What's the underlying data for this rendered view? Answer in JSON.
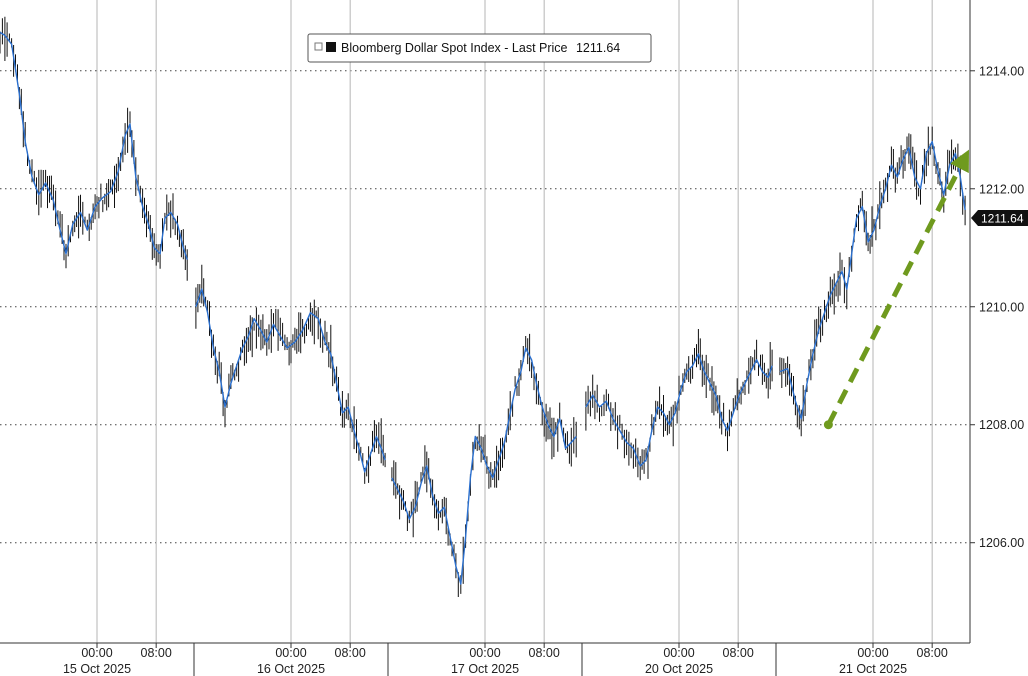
{
  "chart_data": {
    "type": "line",
    "title": "",
    "legend": {
      "label": "Bloomberg Dollar Spot Index - Last Price",
      "value": "1211.64",
      "placement": "top-center"
    },
    "last_price_label": "1211.64",
    "y_axis": {
      "position": "right",
      "ylim": [
        1204.3,
        1215.2
      ],
      "ticks": [
        1206,
        1208,
        1210,
        1212,
        1214
      ],
      "tick_labels": [
        "1206.00",
        "1208.00",
        "1210.00",
        "1212.00",
        "1214.00"
      ]
    },
    "x_axis": {
      "xlim": [
        0,
        100
      ],
      "time_ticks": [
        {
          "label": "00:00",
          "x": 10.0
        },
        {
          "label": "08:00",
          "x": 16.1
        },
        {
          "label": "00:00",
          "x": 30.0
        },
        {
          "label": "08:00",
          "x": 36.1
        },
        {
          "label": "00:00",
          "x": 50.0
        },
        {
          "label": "08:00",
          "x": 56.1
        },
        {
          "label": "00:00",
          "x": 70.0
        },
        {
          "label": "08:00",
          "x": 76.1
        },
        {
          "label": "00:00",
          "x": 90.0
        },
        {
          "label": "08:00",
          "x": 96.1
        }
      ],
      "date_labels": [
        {
          "label": "15 Oct 2025",
          "x": 10.0
        },
        {
          "label": "16 Oct 2025",
          "x": 30.0
        },
        {
          "label": "17 Oct 2025",
          "x": 50.0
        },
        {
          "label": "20 Oct 2025",
          "x": 70.0
        },
        {
          "label": "21 Oct 2025",
          "x": 90.0
        }
      ],
      "day_separators": [
        20,
        40,
        60,
        80
      ]
    },
    "grid": true,
    "series": [
      {
        "name": "Bloomberg Dollar Spot Index",
        "color": "#2a6fce",
        "wick_color": "#111111",
        "segments": [
          [
            [
              0.0,
              1214.65
            ],
            [
              0.5,
              1214.6
            ],
            [
              1.2,
              1214.45
            ],
            [
              2.0,
              1213.6
            ],
            [
              2.6,
              1212.8
            ],
            [
              3.3,
              1212.2
            ],
            [
              4.0,
              1211.9
            ],
            [
              4.7,
              1212.1
            ],
            [
              5.5,
              1211.8
            ],
            [
              6.2,
              1211.3
            ],
            [
              6.8,
              1210.9
            ],
            [
              7.5,
              1211.4
            ],
            [
              8.3,
              1211.6
            ],
            [
              9.0,
              1211.3
            ],
            [
              9.8,
              1211.7
            ],
            [
              10.6,
              1211.85
            ],
            [
              11.4,
              1211.95
            ],
            [
              12.2,
              1212.3
            ],
            [
              12.9,
              1212.9
            ],
            [
              13.4,
              1213.1
            ],
            [
              14.0,
              1212.2
            ],
            [
              14.7,
              1211.7
            ],
            [
              15.3,
              1211.4
            ],
            [
              15.9,
              1211.0
            ],
            [
              16.5,
              1210.9
            ],
            [
              17.0,
              1211.5
            ],
            [
              17.6,
              1211.6
            ],
            [
              18.3,
              1211.4
            ],
            [
              18.9,
              1211.0
            ],
            [
              19.3,
              1210.8
            ]
          ],
          [
            [
              20.2,
              1210.0
            ],
            [
              20.8,
              1210.3
            ],
            [
              21.4,
              1209.9
            ],
            [
              22.0,
              1209.3
            ],
            [
              22.6,
              1208.9
            ],
            [
              23.2,
              1208.3
            ],
            [
              23.8,
              1208.7
            ],
            [
              24.4,
              1209.0
            ],
            [
              25.0,
              1209.3
            ],
            [
              25.6,
              1209.5
            ],
            [
              26.2,
              1209.8
            ],
            [
              26.9,
              1209.6
            ],
            [
              27.5,
              1209.4
            ],
            [
              28.2,
              1209.7
            ],
            [
              28.9,
              1209.5
            ],
            [
              29.6,
              1209.3
            ],
            [
              30.4,
              1209.4
            ],
            [
              31.2,
              1209.6
            ],
            [
              32.0,
              1209.9
            ],
            [
              32.8,
              1209.8
            ],
            [
              33.5,
              1209.4
            ],
            [
              34.1,
              1209.2
            ],
            [
              34.7,
              1208.7
            ],
            [
              35.3,
              1208.2
            ],
            [
              35.9,
              1208.3
            ],
            [
              36.5,
              1207.9
            ],
            [
              37.0,
              1207.6
            ],
            [
              37.6,
              1207.2
            ],
            [
              38.2,
              1207.5
            ],
            [
              38.8,
              1207.8
            ],
            [
              39.3,
              1207.6
            ],
            [
              39.7,
              1207.4
            ]
          ],
          [
            [
              40.4,
              1207.1
            ],
            [
              41.0,
              1206.9
            ],
            [
              41.6,
              1206.7
            ],
            [
              42.2,
              1206.4
            ],
            [
              42.8,
              1206.6
            ],
            [
              43.4,
              1207.0
            ],
            [
              44.0,
              1207.3
            ],
            [
              44.6,
              1206.8
            ],
            [
              45.2,
              1206.5
            ],
            [
              45.8,
              1206.6
            ],
            [
              46.4,
              1206.1
            ],
            [
              47.0,
              1205.6
            ],
            [
              47.5,
              1205.3
            ],
            [
              48.0,
              1206.1
            ],
            [
              48.5,
              1207.1
            ],
            [
              49.0,
              1207.8
            ],
            [
              49.6,
              1207.6
            ],
            [
              50.2,
              1207.3
            ],
            [
              50.8,
              1207.1
            ],
            [
              51.4,
              1207.4
            ],
            [
              52.0,
              1207.7
            ],
            [
              52.6,
              1208.2
            ],
            [
              53.1,
              1208.6
            ],
            [
              53.7,
              1208.9
            ],
            [
              54.2,
              1209.3
            ],
            [
              54.8,
              1209.1
            ],
            [
              55.3,
              1208.7
            ],
            [
              55.9,
              1208.3
            ],
            [
              56.5,
              1208.0
            ],
            [
              57.1,
              1207.8
            ],
            [
              57.7,
              1208.1
            ],
            [
              58.3,
              1207.6
            ],
            [
              58.9,
              1207.7
            ],
            [
              59.4,
              1207.8
            ]
          ],
          [
            [
              60.4,
              1208.3
            ],
            [
              61.1,
              1208.5
            ],
            [
              61.8,
              1208.3
            ],
            [
              62.5,
              1208.4
            ],
            [
              63.2,
              1208.1
            ],
            [
              63.9,
              1207.9
            ],
            [
              64.6,
              1207.7
            ],
            [
              65.3,
              1207.6
            ],
            [
              66.0,
              1207.3
            ],
            [
              66.6,
              1207.4
            ],
            [
              67.2,
              1207.9
            ],
            [
              67.8,
              1208.3
            ],
            [
              68.4,
              1208.2
            ],
            [
              69.0,
              1208.0
            ],
            [
              69.6,
              1208.2
            ],
            [
              70.2,
              1208.6
            ],
            [
              70.8,
              1208.9
            ],
            [
              71.4,
              1209.0
            ],
            [
              72.0,
              1209.2
            ],
            [
              72.6,
              1208.9
            ],
            [
              73.2,
              1208.7
            ],
            [
              73.8,
              1208.5
            ],
            [
              74.4,
              1208.1
            ],
            [
              75.0,
              1207.9
            ],
            [
              75.6,
              1208.2
            ],
            [
              76.2,
              1208.5
            ],
            [
              76.8,
              1208.7
            ],
            [
              77.4,
              1208.9
            ],
            [
              78.0,
              1209.1
            ],
            [
              78.6,
              1208.9
            ],
            [
              79.2,
              1208.8
            ],
            [
              79.6,
              1209.0
            ]
          ],
          [
            [
              80.4,
              1208.9
            ],
            [
              81.2,
              1208.95
            ],
            [
              82.0,
              1208.4
            ],
            [
              82.6,
              1208.1
            ],
            [
              83.2,
              1208.7
            ],
            [
              83.8,
              1209.2
            ],
            [
              84.4,
              1209.6
            ],
            [
              85.0,
              1209.9
            ],
            [
              85.6,
              1210.2
            ],
            [
              86.2,
              1210.4
            ],
            [
              86.8,
              1210.6
            ],
            [
              87.3,
              1210.3
            ],
            [
              87.8,
              1210.9
            ],
            [
              88.3,
              1211.5
            ],
            [
              88.9,
              1211.7
            ],
            [
              89.5,
              1211.1
            ],
            [
              90.1,
              1211.3
            ],
            [
              90.7,
              1211.7
            ],
            [
              91.3,
              1212.0
            ],
            [
              91.9,
              1212.4
            ],
            [
              92.5,
              1212.2
            ],
            [
              93.1,
              1212.5
            ],
            [
              93.7,
              1212.7
            ],
            [
              94.3,
              1212.2
            ],
            [
              94.9,
              1212.0
            ],
            [
              95.5,
              1212.6
            ],
            [
              96.1,
              1212.8
            ],
            [
              96.7,
              1212.3
            ],
            [
              97.3,
              1211.9
            ],
            [
              97.9,
              1212.4
            ],
            [
              98.5,
              1212.6
            ],
            [
              99.0,
              1212.2
            ],
            [
              99.5,
              1211.64
            ]
          ]
        ]
      }
    ],
    "annotation": {
      "type": "arrow",
      "style": "dashed",
      "color": "#6f9a1e",
      "from": {
        "x": 85.4,
        "y": 1208.0
      },
      "to": {
        "x": 99.7,
        "y": 1212.6
      }
    }
  }
}
